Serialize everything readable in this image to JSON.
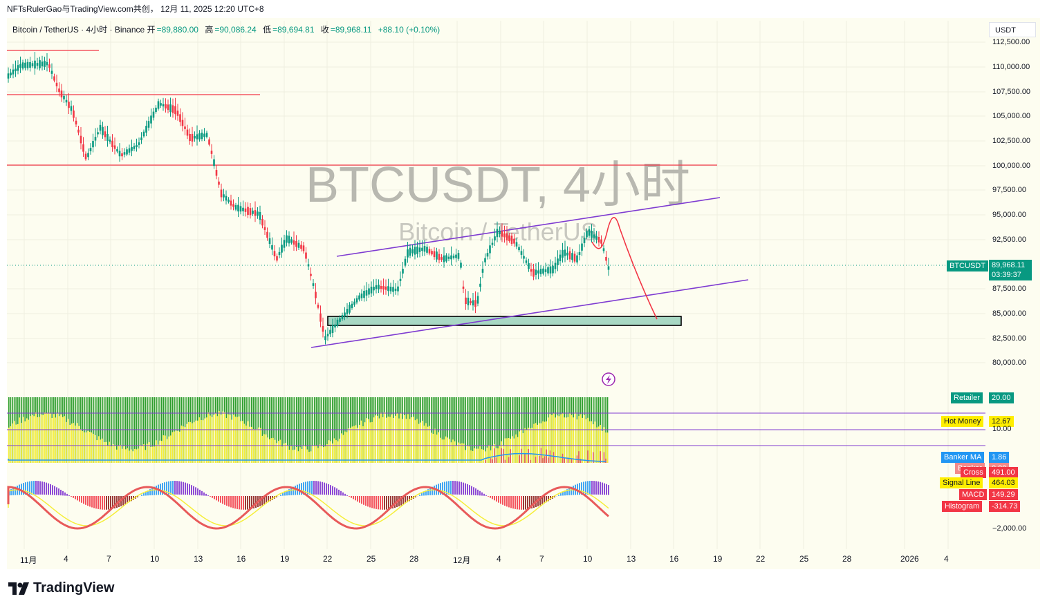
{
  "header": {
    "publisher_line": "NFTsRulerGao与TradingView.com共创， 12月 11, 2025 12:20 UTC+8"
  },
  "symbol": {
    "name": "Bitcoin / TetherUS · 4小时 · Binance",
    "open_label": "开",
    "open": "=89,880.00",
    "high_label": "高",
    "high": "=90,086.24",
    "low_label": "低",
    "low": "=89,694.81",
    "close_label": "收",
    "close": "=89,968.11",
    "change": "+88.10 (+0.10%)"
  },
  "currency_button": "USDT",
  "watermark": {
    "title": "BTCUSDT, 4小时",
    "subtitle": "Bitcoin / TetherUS"
  },
  "price_axis": [
    "112,500.00",
    "110,000.00",
    "107,500.00",
    "105,000.00",
    "102,500.00",
    "100,000.00",
    "97,500.00",
    "95,000.00",
    "92,500.00",
    "87,500.00",
    "85,000.00",
    "82,500.00",
    "80,000.00"
  ],
  "last_price": {
    "symbol": "BTCUSDT",
    "price": "89,968.11",
    "countdown": "03:39:37",
    "color": "#089981"
  },
  "indicator_labels": {
    "retailer": "Retailer",
    "retailer_val": "20.00",
    "hot_money": "Hot Money",
    "hot_money_val": "12.67",
    "level_10": "10.00",
    "banker_ma": "Banker MA",
    "banker_ma_val": "1.86",
    "banker": "Banker",
    "banker_val": "0.00",
    "cross": "Cross",
    "cross_val": "491.00",
    "signal_line": "Signal Line",
    "signal_line_val": "464.03",
    "macd": "MACD",
    "macd_val": "149.29",
    "histogram": "Histogram",
    "histogram_val": "-314.73",
    "macd_axis": "−2,000.00"
  },
  "time_axis": [
    "11月",
    "4",
    "7",
    "10",
    "13",
    "16",
    "19",
    "22",
    "25",
    "28",
    "12月",
    "4",
    "7",
    "10",
    "13",
    "16",
    "19",
    "22",
    "25",
    "28",
    "2026",
    "4"
  ],
  "brand": "TradingView",
  "colors": {
    "up": "#089981",
    "down": "#f23645",
    "channel": "#7e3bd1",
    "level": "#f23645",
    "zone": "#a8d8c4"
  }
}
